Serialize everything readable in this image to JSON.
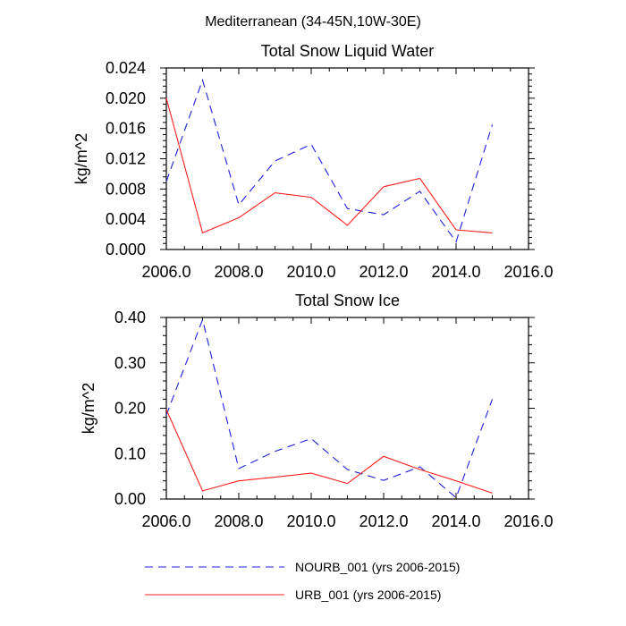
{
  "figure_title": "Mediterranean (34-45N,10W-30E)",
  "colors": {
    "nourb": "#1f1fe0",
    "urb": "#ff2020",
    "axis": "#000000"
  },
  "legend": {
    "position": "bottom",
    "items": [
      {
        "label": "NOURB_001 (yrs 2006-2015)",
        "series": "NOURB_001",
        "style": "dashed"
      },
      {
        "label": "URB_001 (yrs 2006-2015)",
        "series": "URB_001",
        "style": "solid"
      }
    ]
  },
  "chart_data": [
    {
      "type": "line",
      "title": "Total Snow Liquid Water",
      "xlabel": "",
      "ylabel": "kg/m^2",
      "xlim": [
        2006,
        2016
      ],
      "ylim": [
        0,
        0.024
      ],
      "x_ticks": [
        2006,
        2008,
        2010,
        2012,
        2014,
        2016
      ],
      "x_tick_labels": [
        "2006.0",
        "2008.0",
        "2010.0",
        "2012.0",
        "2014.0",
        "2016.0"
      ],
      "y_ticks": [
        0,
        0.004,
        0.008,
        0.012,
        0.016,
        0.02,
        0.024
      ],
      "y_tick_labels": [
        "0.000",
        "0.004",
        "0.008",
        "0.012",
        "0.016",
        "0.020",
        "0.024"
      ],
      "grid": false,
      "x": [
        2006,
        2007,
        2008,
        2009,
        2010,
        2011,
        2012,
        2013,
        2014,
        2015
      ],
      "series": [
        {
          "name": "NOURB_001",
          "style": "dashed",
          "values": [
            0.009,
            0.0224,
            0.0059,
            0.0117,
            0.0139,
            0.0054,
            0.0046,
            0.0077,
            0.001,
            0.0165
          ]
        },
        {
          "name": "URB_001",
          "style": "solid",
          "values": [
            0.02,
            0.0022,
            0.0042,
            0.0075,
            0.0069,
            0.0032,
            0.0083,
            0.0094,
            0.0026,
            0.0022
          ]
        }
      ]
    },
    {
      "type": "line",
      "title": "Total Snow Ice",
      "xlabel": "",
      "ylabel": "kg/m^2",
      "xlim": [
        2006,
        2016
      ],
      "ylim": [
        0,
        0.4
      ],
      "x_ticks": [
        2006,
        2008,
        2010,
        2012,
        2014,
        2016
      ],
      "x_tick_labels": [
        "2006.0",
        "2008.0",
        "2010.0",
        "2012.0",
        "2014.0",
        "2016.0"
      ],
      "y_ticks": [
        0,
        0.1,
        0.2,
        0.3,
        0.4
      ],
      "y_tick_labels": [
        "0.00",
        "0.10",
        "0.20",
        "0.30",
        "0.40"
      ],
      "grid": false,
      "x": [
        2006,
        2007,
        2008,
        2009,
        2010,
        2011,
        2012,
        2013,
        2014,
        2015
      ],
      "series": [
        {
          "name": "NOURB_001",
          "style": "dashed",
          "values": [
            0.185,
            0.395,
            0.067,
            0.105,
            0.133,
            0.065,
            0.041,
            0.071,
            0.003,
            0.22
          ]
        },
        {
          "name": "URB_001",
          "style": "solid",
          "values": [
            0.197,
            0.018,
            0.04,
            0.048,
            0.057,
            0.034,
            0.094,
            0.065,
            0.04,
            0.013
          ]
        }
      ]
    }
  ]
}
